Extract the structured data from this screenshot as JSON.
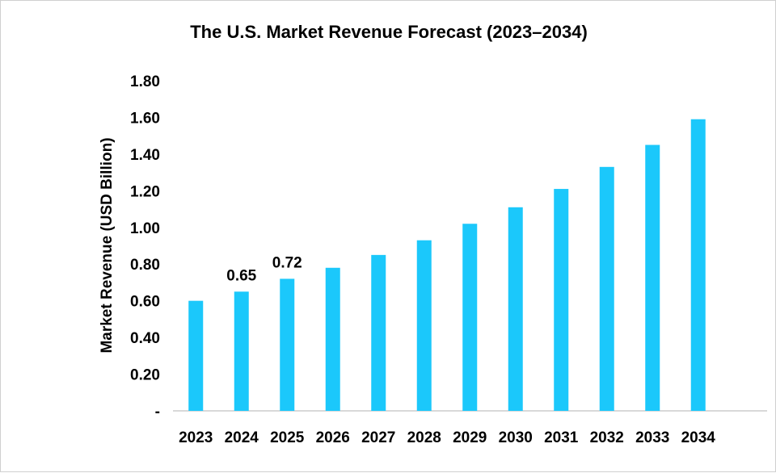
{
  "chart_data": {
    "type": "bar",
    "title": "The U.S. Market Revenue Forecast (2023–2034)",
    "xlabel": "",
    "ylabel": "Market Revenue (USD Billion)",
    "categories": [
      "2023",
      "2024",
      "2025",
      "2026",
      "2027",
      "2028",
      "2029",
      "2030",
      "2031",
      "2032",
      "2033",
      "2034"
    ],
    "values": [
      0.6,
      0.65,
      0.72,
      0.78,
      0.85,
      0.93,
      1.02,
      1.11,
      1.21,
      1.33,
      1.45,
      1.59
    ],
    "data_labels": {
      "2024": "0.65",
      "2025": "0.72"
    },
    "ylim": [
      0,
      1.8
    ],
    "yticks": [
      "-",
      "0.20",
      "0.40",
      "0.60",
      "0.80",
      "1.00",
      "1.20",
      "1.40",
      "1.60",
      "1.80"
    ],
    "grid": false,
    "legend": "none",
    "bar_color": "#1BC8FB"
  }
}
